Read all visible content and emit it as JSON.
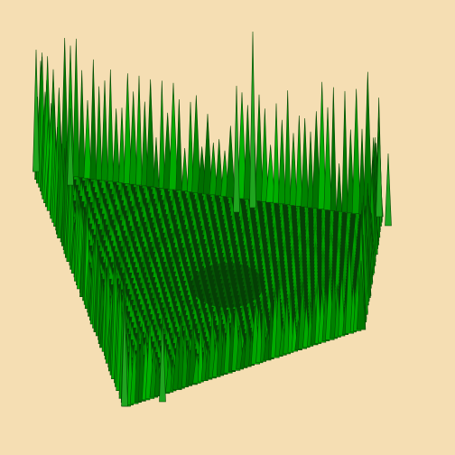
{
  "scene": {
    "background_color": "#f5deb3",
    "surface_color": "#0a7a0a",
    "surface_dark_color": "#063f06",
    "surface_light_color": "#1fa51f",
    "type": "3d-surface-plot",
    "description_visible": ""
  }
}
